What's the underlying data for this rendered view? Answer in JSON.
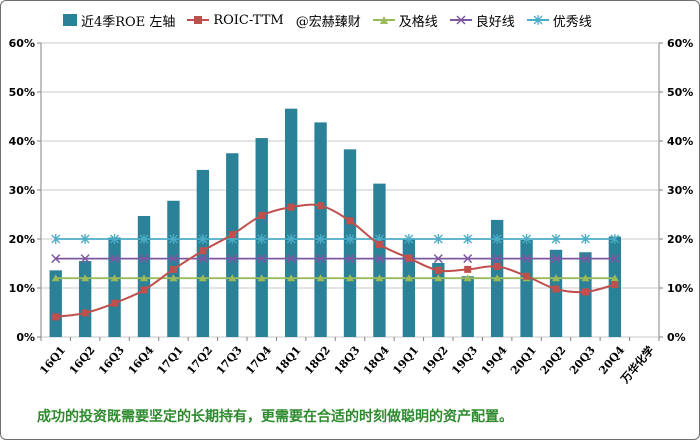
{
  "chart_data": {
    "type": "bar",
    "categories": [
      "16Q1",
      "16Q2",
      "16Q3",
      "16Q4",
      "17Q1",
      "17Q2",
      "17Q3",
      "17Q4",
      "18Q1",
      "18Q2",
      "18Q3",
      "18Q4",
      "19Q1",
      "19Q2",
      "19Q3",
      "19Q4",
      "20Q1",
      "20Q2",
      "20Q3",
      "20Q4"
    ],
    "extra_category_label": "万华化学",
    "y_left": {
      "min": 0,
      "max": 0.6,
      "ticks": [
        "0%",
        "10%",
        "20%",
        "30%",
        "40%",
        "50%",
        "60%"
      ]
    },
    "y_right": {
      "min": 0,
      "max": 0.6,
      "ticks": [
        "0%",
        "10%",
        "20%",
        "30%",
        "40%",
        "50%",
        "60%"
      ]
    },
    "grid": true,
    "legend_placement": "top",
    "watermark": "@宏赫臻财",
    "series": [
      {
        "name": "近4季ROE 左轴",
        "type": "bar",
        "color": "#2b8197",
        "values": [
          0.136,
          0.155,
          0.203,
          0.247,
          0.278,
          0.341,
          0.375,
          0.406,
          0.466,
          0.438,
          0.383,
          0.313,
          0.199,
          0.151,
          0.124,
          0.239,
          0.198,
          0.178,
          0.173,
          0.205
        ]
      },
      {
        "name": "ROIC-TTM",
        "type": "line",
        "marker": "square",
        "color": "#c0504d",
        "values": [
          0.041,
          0.049,
          0.069,
          0.096,
          0.138,
          0.176,
          0.209,
          0.248,
          0.265,
          0.268,
          0.237,
          0.189,
          0.161,
          0.136,
          0.138,
          0.144,
          0.124,
          0.098,
          0.092,
          0.107
        ]
      },
      {
        "name": "及格线",
        "type": "line",
        "marker": "triangle",
        "color": "#9bbb59",
        "values": [
          0.12,
          0.12,
          0.12,
          0.12,
          0.12,
          0.12,
          0.12,
          0.12,
          0.12,
          0.12,
          0.12,
          0.12,
          0.12,
          0.12,
          0.12,
          0.12,
          0.12,
          0.12,
          0.12,
          0.12
        ]
      },
      {
        "name": "良好线",
        "type": "line",
        "marker": "x",
        "color": "#7e57a2",
        "values": [
          0.16,
          0.16,
          0.16,
          0.16,
          0.16,
          0.16,
          0.16,
          0.16,
          0.16,
          0.16,
          0.16,
          0.16,
          0.16,
          0.16,
          0.16,
          0.16,
          0.16,
          0.16,
          0.16,
          0.16
        ]
      },
      {
        "name": "优秀线",
        "type": "line",
        "marker": "asterisk",
        "color": "#4bacc6",
        "values": [
          0.2,
          0.2,
          0.2,
          0.2,
          0.2,
          0.2,
          0.2,
          0.2,
          0.2,
          0.2,
          0.2,
          0.2,
          0.2,
          0.2,
          0.2,
          0.2,
          0.2,
          0.2,
          0.2,
          0.2
        ]
      }
    ]
  },
  "footer": {
    "note": "成功的投资既需要坚定的长期持有，更需要在合适的时刻做聪明的资产配置。"
  }
}
